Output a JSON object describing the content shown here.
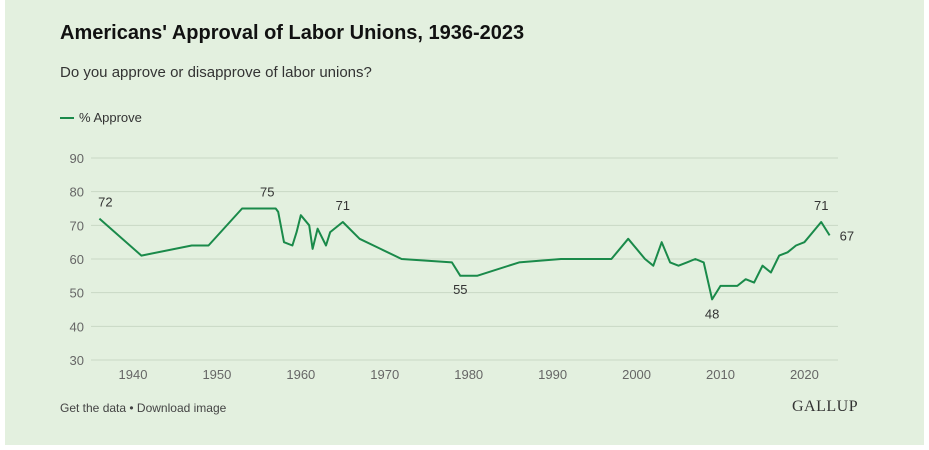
{
  "header": {
    "title": "Americans' Approval of Labor Unions, 1936-2023",
    "subtitle": "Do you approve or disapprove of labor unions?"
  },
  "legend": {
    "label": "% Approve"
  },
  "footer": {
    "get_data": "Get the data",
    "separator": " • ",
    "download": "Download image",
    "brand": "GALLUP"
  },
  "colors": {
    "background": "#e3f0df",
    "line": "#1a8a4a",
    "grid": "#c9d8c5",
    "tick_text": "#666666"
  },
  "chart_data": {
    "type": "line",
    "title": "Americans' Approval of Labor Unions, 1936-2023",
    "subtitle": "Do you approve or disapprove of labor unions?",
    "xlabel": "",
    "ylabel": "",
    "xlim": [
      1935,
      2024
    ],
    "ylim": [
      30,
      90
    ],
    "x_ticks": [
      1940,
      1950,
      1960,
      1970,
      1980,
      1990,
      2000,
      2010,
      2020
    ],
    "y_ticks": [
      30,
      40,
      50,
      60,
      70,
      80,
      90
    ],
    "grid": true,
    "legend_position": "top-left",
    "series": [
      {
        "name": "% Approve",
        "x": [
          1936,
          1941,
          1947,
          1949,
          1953,
          1956,
          1957,
          1957.3,
          1958,
          1959,
          1959.5,
          1960,
          1961,
          1961.4,
          1962,
          1963,
          1963.5,
          1965,
          1967,
          1972,
          1978,
          1979,
          1981,
          1986,
          1991,
          1997,
          1999,
          2001,
          2002,
          2003,
          2004,
          2005,
          2006,
          2007,
          2008,
          2009,
          2010,
          2011,
          2012,
          2013,
          2014,
          2015,
          2016,
          2017,
          2018,
          2019,
          2020,
          2021,
          2022,
          2023
        ],
        "y": [
          72,
          61,
          64,
          64,
          75,
          75,
          75,
          74,
          65,
          64,
          68,
          73,
          70,
          63,
          69,
          64,
          68,
          71,
          66,
          60,
          59,
          55,
          55,
          59,
          60,
          60,
          66,
          60,
          58,
          65,
          59,
          58,
          59,
          60,
          59,
          48,
          52,
          52,
          52,
          54,
          53,
          58,
          56,
          61,
          62,
          64,
          65,
          68,
          71,
          67
        ]
      }
    ],
    "annotations": [
      {
        "x": 1936,
        "y": 72,
        "text": "72"
      },
      {
        "x": 1956,
        "y": 75,
        "text": "75"
      },
      {
        "x": 1965,
        "y": 71,
        "text": "71"
      },
      {
        "x": 1979,
        "y": 55,
        "text": "55"
      },
      {
        "x": 2009,
        "y": 48,
        "text": "48"
      },
      {
        "x": 2022,
        "y": 71,
        "text": "71"
      },
      {
        "x": 2023,
        "y": 67,
        "text": "67"
      }
    ]
  }
}
